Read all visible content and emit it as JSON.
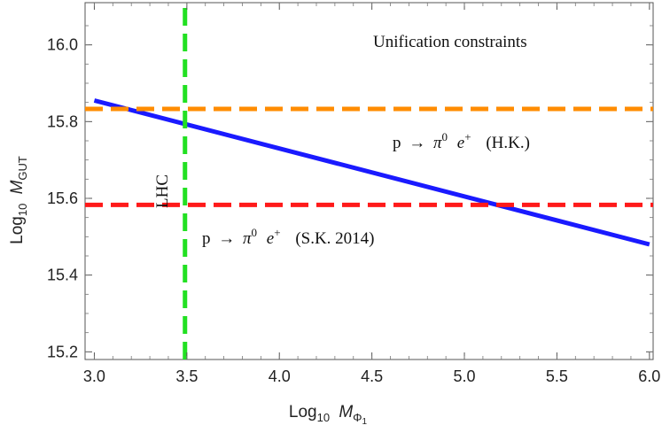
{
  "chart_data": {
    "type": "line",
    "title": "",
    "xlabel": {
      "main": "Log",
      "sub": "10",
      "var": "M",
      "var_sub": "Φ",
      "var_sub2": "1"
    },
    "ylabel": {
      "main": "Log",
      "sub": "10",
      "var": "M",
      "var_sub": "GUT"
    },
    "xlim": [
      2.95,
      6.02
    ],
    "ylim": [
      15.18,
      16.11
    ],
    "xticks": [
      "3.0",
      "3.5",
      "4.0",
      "4.5",
      "5.0",
      "5.5",
      "6.0"
    ],
    "yticks": [
      "15.2",
      "15.4",
      "15.6",
      "15.8",
      "16.0"
    ],
    "grid": false,
    "series": [
      {
        "name": "",
        "style": "solid",
        "color": "#1a1aff",
        "x": [
          3.0,
          6.0
        ],
        "y": [
          15.855,
          15.48
        ]
      },
      {
        "name": "",
        "style": "dashed",
        "color": "#ff8c00",
        "x": [
          2.95,
          6.02
        ],
        "y": [
          15.833,
          15.833
        ]
      },
      {
        "name": "",
        "style": "dashed",
        "color": "#ff1a1a",
        "x": [
          2.95,
          6.02
        ],
        "y": [
          15.583,
          15.583
        ]
      },
      {
        "name": "",
        "style": "dashed-vertical",
        "color": "#22e022",
        "x": [
          3.49,
          3.49
        ],
        "y": [
          15.18,
          16.11
        ]
      }
    ],
    "annotations": {
      "unification": "Unification constraints",
      "hk": {
        "p": "p",
        "arrow": "→",
        "pi": "π",
        "pi_sup": "0",
        "e": "e",
        "e_sup": "+",
        "tag": "(H.K.)"
      },
      "sk": {
        "p": "p",
        "arrow": "→",
        "pi": "π",
        "pi_sup": "0",
        "e": "e",
        "e_sup": "+",
        "tag": "(S.K. 2014)"
      },
      "lhc": "LHC"
    }
  }
}
